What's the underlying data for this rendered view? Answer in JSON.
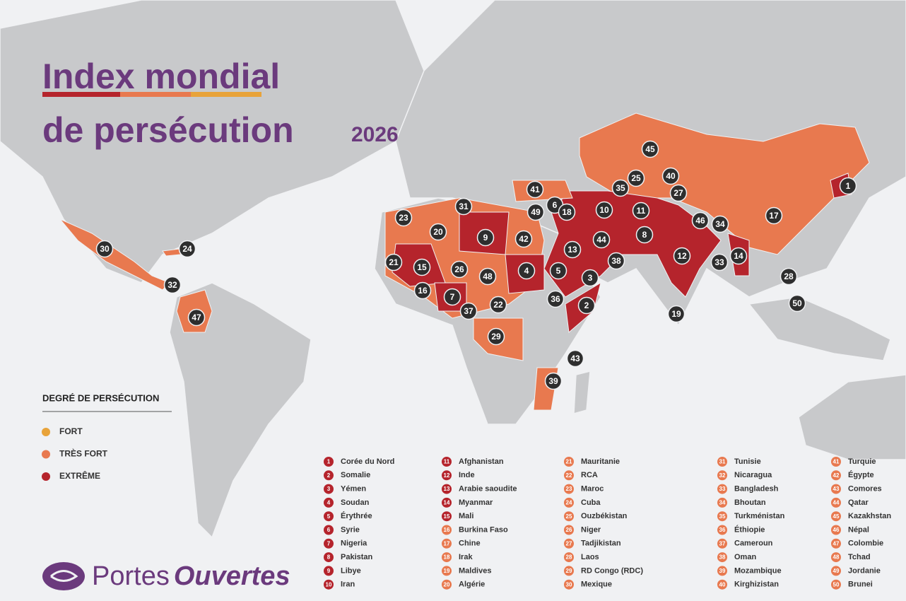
{
  "title_line1": "Index mondial",
  "title_line2": "de persécution",
  "year": "2026",
  "legend": {
    "title": "DEGRÉ DE PERSÉCUTION",
    "items": [
      {
        "label": "FORT",
        "color": "#e8a33a"
      },
      {
        "label": "TRÈS FORT",
        "color": "#e8794f"
      },
      {
        "label": "EXTRÊME",
        "color": "#b5242c"
      }
    ]
  },
  "countries": [
    {
      "rank": 1,
      "name": "Corée du Nord",
      "color": "#b5242c"
    },
    {
      "rank": 2,
      "name": "Somalie",
      "color": "#b5242c"
    },
    {
      "rank": 3,
      "name": "Yémen",
      "color": "#b5242c"
    },
    {
      "rank": 4,
      "name": "Soudan",
      "color": "#b5242c"
    },
    {
      "rank": 5,
      "name": "Érythrée",
      "color": "#b5242c"
    },
    {
      "rank": 6,
      "name": "Syrie",
      "color": "#b5242c"
    },
    {
      "rank": 7,
      "name": "Nigeria",
      "color": "#b5242c"
    },
    {
      "rank": 8,
      "name": "Pakistan",
      "color": "#b5242c"
    },
    {
      "rank": 9,
      "name": "Libye",
      "color": "#b5242c"
    },
    {
      "rank": 10,
      "name": "Iran",
      "color": "#b5242c"
    },
    {
      "rank": 11,
      "name": "Afghanistan",
      "color": "#b5242c"
    },
    {
      "rank": 12,
      "name": "Inde",
      "color": "#b5242c"
    },
    {
      "rank": 13,
      "name": "Arabie saoudite",
      "color": "#b5242c"
    },
    {
      "rank": 14,
      "name": "Myanmar",
      "color": "#b5242c"
    },
    {
      "rank": 15,
      "name": "Mali",
      "color": "#b5242c"
    },
    {
      "rank": 16,
      "name": "Burkina Faso",
      "color": "#e8794f"
    },
    {
      "rank": 17,
      "name": "Chine",
      "color": "#e8794f"
    },
    {
      "rank": 18,
      "name": "Irak",
      "color": "#e8794f"
    },
    {
      "rank": 19,
      "name": "Maldives",
      "color": "#e8794f"
    },
    {
      "rank": 20,
      "name": "Algérie",
      "color": "#e8794f"
    },
    {
      "rank": 21,
      "name": "Mauritanie",
      "color": "#e8794f"
    },
    {
      "rank": 22,
      "name": "RCA",
      "color": "#e8794f"
    },
    {
      "rank": 23,
      "name": "Maroc",
      "color": "#e8794f"
    },
    {
      "rank": 24,
      "name": "Cuba",
      "color": "#e8794f"
    },
    {
      "rank": 25,
      "name": "Ouzbékistan",
      "color": "#e8794f"
    },
    {
      "rank": 26,
      "name": "Niger",
      "color": "#e8794f"
    },
    {
      "rank": 27,
      "name": "Tadjikistan",
      "color": "#e8794f"
    },
    {
      "rank": 28,
      "name": "Laos",
      "color": "#e8794f"
    },
    {
      "rank": 29,
      "name": "RD Congo (RDC)",
      "color": "#e8794f"
    },
    {
      "rank": 30,
      "name": "Mexique",
      "color": "#e8794f"
    },
    {
      "rank": 31,
      "name": "Tunisie",
      "color": "#e8794f"
    },
    {
      "rank": 32,
      "name": "Nicaragua",
      "color": "#e8794f"
    },
    {
      "rank": 33,
      "name": "Bangladesh",
      "color": "#e8794f"
    },
    {
      "rank": 34,
      "name": "Bhoutan",
      "color": "#e8794f"
    },
    {
      "rank": 35,
      "name": "Turkménistan",
      "color": "#e8794f"
    },
    {
      "rank": 36,
      "name": "Éthiopie",
      "color": "#e8794f"
    },
    {
      "rank": 37,
      "name": "Cameroun",
      "color": "#e8794f"
    },
    {
      "rank": 38,
      "name": "Oman",
      "color": "#e8794f"
    },
    {
      "rank": 39,
      "name": "Mozambique",
      "color": "#e8794f"
    },
    {
      "rank": 40,
      "name": "Kirghizistan",
      "color": "#e8794f"
    },
    {
      "rank": 41,
      "name": "Turquie",
      "color": "#e8794f"
    },
    {
      "rank": 42,
      "name": "Égypte",
      "color": "#e8794f"
    },
    {
      "rank": 43,
      "name": "Comores",
      "color": "#e8794f"
    },
    {
      "rank": 44,
      "name": "Qatar",
      "color": "#e8794f"
    },
    {
      "rank": 45,
      "name": "Kazakhstan",
      "color": "#e8794f"
    },
    {
      "rank": 46,
      "name": "Népal",
      "color": "#e8794f"
    },
    {
      "rank": 47,
      "name": "Colombie",
      "color": "#e8794f"
    },
    {
      "rank": 48,
      "name": "Tchad",
      "color": "#e8794f"
    },
    {
      "rank": 49,
      "name": "Jordanie",
      "color": "#e8794f"
    },
    {
      "rank": 50,
      "name": "Brunei",
      "color": "#e8794f"
    }
  ],
  "brand": {
    "part1": "Portes",
    "part2": "Ouvertes"
  }
}
